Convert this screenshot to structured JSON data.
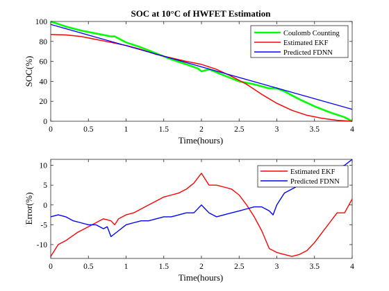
{
  "chart_data": [
    {
      "type": "line",
      "title": "SOC at 10°C of HWFET Estimation",
      "xlabel": "Time(hours)",
      "ylabel": "SOC(%)",
      "xlim": [
        0,
        4
      ],
      "ylim": [
        0,
        100
      ],
      "xticks": [
        0,
        0.5,
        1,
        1.5,
        2,
        2.5,
        3,
        3.5,
        4
      ],
      "xtick_labels": [
        "0",
        "0.5",
        "1",
        "1.5",
        "2",
        "2.5",
        "3",
        "3.5",
        "4"
      ],
      "yticks": [
        0,
        20,
        40,
        60,
        80,
        100
      ],
      "ytick_labels": [
        "0",
        "20",
        "40",
        "60",
        "80",
        "100"
      ],
      "grid": false,
      "legend_position": "top-right",
      "series": [
        {
          "name": "Coulomb Counting",
          "color": "#00ff00",
          "x": [
            0,
            0.2,
            0.4,
            0.6,
            0.8,
            0.85,
            1.0,
            1.2,
            1.4,
            1.6,
            1.8,
            1.95,
            2.0,
            2.1,
            2.3,
            2.5,
            2.7,
            2.9,
            3.0,
            3.1,
            3.3,
            3.5,
            3.7,
            3.9,
            4.0
          ],
          "y": [
            100,
            95,
            91,
            88,
            85,
            85,
            79,
            74,
            68,
            62,
            57,
            53,
            50,
            52,
            46,
            40,
            37,
            33,
            33,
            30,
            22,
            15,
            9,
            4,
            0
          ]
        },
        {
          "name": "Estimated EKF",
          "color": "#ff0000",
          "x": [
            0,
            0.2,
            0.4,
            0.6,
            0.8,
            1.0,
            1.2,
            1.4,
            1.6,
            1.8,
            2.0,
            2.2,
            2.4,
            2.6,
            2.8,
            3.0,
            3.2,
            3.4,
            3.6,
            3.8,
            4.0
          ],
          "y": [
            87,
            86.5,
            85,
            82,
            79,
            76,
            72,
            67,
            63.5,
            60,
            57,
            52,
            45,
            37,
            27,
            18,
            11,
            6,
            3,
            1,
            0
          ]
        },
        {
          "name": "Predicted FDNN",
          "color": "#0000ff",
          "x": [
            0,
            4
          ],
          "y": [
            97,
            12
          ]
        }
      ]
    },
    {
      "type": "line",
      "title": "",
      "xlabel": "Time(hours)",
      "ylabel": "Error(%)",
      "xlim": [
        0,
        4
      ],
      "ylim": [
        -13.5,
        11.5
      ],
      "xticks": [
        0,
        0.5,
        1,
        1.5,
        2,
        2.5,
        3,
        3.5,
        4
      ],
      "xtick_labels": [
        "0",
        "0.5",
        "1",
        "1.5",
        "2",
        "2.5",
        "3",
        "3.5",
        "4"
      ],
      "yticks": [
        -10,
        -5,
        0,
        5,
        10
      ],
      "ytick_labels": [
        "-10",
        "-5",
        "0",
        "5",
        "10"
      ],
      "grid": false,
      "legend_position": "top-right",
      "series": [
        {
          "name": "Estimated EKF",
          "color": "#ff0000",
          "x": [
            0,
            0.1,
            0.2,
            0.35,
            0.5,
            0.6,
            0.7,
            0.8,
            0.85,
            0.9,
            1.0,
            1.1,
            1.2,
            1.3,
            1.4,
            1.5,
            1.6,
            1.7,
            1.8,
            1.9,
            2.0,
            2.05,
            2.1,
            2.2,
            2.3,
            2.4,
            2.5,
            2.6,
            2.7,
            2.8,
            2.9,
            3.0,
            3.1,
            3.2,
            3.3,
            3.4,
            3.5,
            3.6,
            3.7,
            3.8,
            3.9,
            4.0
          ],
          "y": [
            -13,
            -10,
            -9,
            -7,
            -5.5,
            -4.5,
            -3.5,
            -4,
            -5,
            -3.5,
            -2.5,
            -2,
            -1,
            0,
            1,
            2,
            2.5,
            3,
            4,
            5.5,
            8,
            6.5,
            5,
            5,
            4.5,
            4,
            2.5,
            0,
            -3,
            -6.5,
            -11,
            -12,
            -12.5,
            -13,
            -12.5,
            -11.5,
            -9.5,
            -7,
            -4.5,
            -2,
            -2,
            1.5
          ]
        },
        {
          "name": "Predicted FDNN",
          "color": "#0000ff",
          "x": [
            0,
            0.1,
            0.2,
            0.3,
            0.4,
            0.5,
            0.6,
            0.7,
            0.75,
            0.8,
            0.9,
            1.0,
            1.1,
            1.2,
            1.3,
            1.4,
            1.5,
            1.6,
            1.7,
            1.8,
            1.9,
            2.0,
            2.05,
            2.1,
            2.2,
            2.3,
            2.4,
            2.5,
            2.6,
            2.7,
            2.8,
            2.9,
            2.95,
            3.0,
            3.1,
            3.2,
            3.3,
            3.4,
            3.5,
            3.6,
            3.7,
            3.8,
            3.9,
            4.0
          ],
          "y": [
            -3,
            -2.5,
            -3,
            -4,
            -4.5,
            -5,
            -5,
            -6,
            -5.5,
            -8,
            -6.5,
            -5,
            -4.5,
            -4,
            -4,
            -3.5,
            -3,
            -3,
            -2.5,
            -2,
            -2,
            0,
            -1,
            -2,
            -3,
            -2.5,
            -2,
            -1.5,
            -1,
            -0.5,
            -0.5,
            -1.5,
            -2.5,
            0,
            3,
            4,
            5,
            6,
            7,
            8,
            9,
            9.5,
            10,
            11.5
          ]
        }
      ]
    }
  ]
}
